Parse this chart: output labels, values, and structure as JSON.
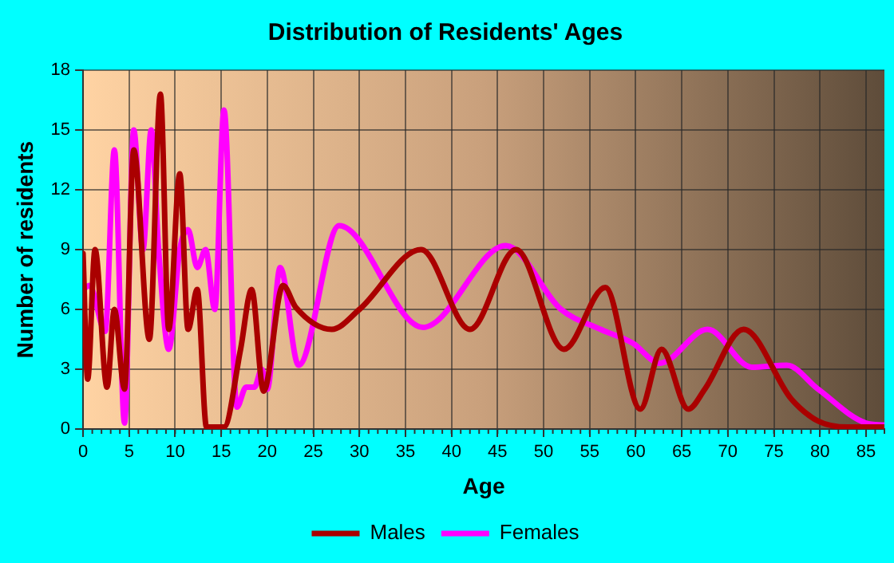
{
  "chart_data": {
    "type": "line",
    "title": "Distribution of Residents' Ages",
    "xlabel": "Age",
    "ylabel": "Number of residents",
    "xlim": [
      0,
      87
    ],
    "xticks": [
      0,
      5,
      10,
      15,
      20,
      25,
      30,
      35,
      40,
      45,
      50,
      55,
      60,
      65,
      70,
      75,
      80,
      85
    ],
    "ylim": [
      0,
      18
    ],
    "yticks": [
      0,
      3,
      6,
      9,
      12,
      15,
      18
    ],
    "grid": true,
    "legend": "bottom",
    "marker": "none",
    "line_style": "solid",
    "series": [
      {
        "name": "Males",
        "color": "#aa0000",
        "x": [
          0,
          0.5,
          1.3,
          2.6,
          3.4,
          4.5,
          5.5,
          7.2,
          8.4,
          9.3,
          10.5,
          11.4,
          12.4,
          13.4,
          15.3,
          17.1,
          18.3,
          19.6,
          21.7,
          23.1,
          27,
          30,
          36.7,
          42,
          47,
          52.2,
          56.7,
          60.5,
          62.8,
          65.7,
          67.5,
          71.7,
          76.9,
          79.8,
          83,
          87
        ],
        "values": [
          8.8,
          2.5,
          9,
          2.1,
          6,
          2,
          14,
          4.5,
          16.8,
          5,
          12.8,
          5,
          7,
          0.1,
          0.1,
          4,
          7,
          1.9,
          7.2,
          6.1,
          5,
          6,
          9,
          5,
          9,
          4,
          7.1,
          1,
          4,
          1,
          2,
          5,
          1.5,
          0.4,
          0.1,
          0.1
        ]
      },
      {
        "name": "Females",
        "color": "#ff00ff",
        "x": [
          0,
          0.7,
          2.4,
          3.4,
          4.5,
          5.5,
          6.5,
          7.4,
          8.2,
          9.3,
          10.5,
          11.4,
          12.4,
          13.3,
          14.3,
          15.3,
          16.7,
          17.7,
          18.6,
          19.4,
          20,
          21.4,
          23.4,
          27.8,
          36.9,
          45.9,
          51.9,
          56.2,
          59.7,
          62.6,
          67.8,
          72.6,
          76.4,
          79.8,
          85,
          87
        ],
        "values": [
          7,
          7.2,
          4.9,
          14,
          0.3,
          15,
          9,
          15,
          9,
          4,
          9,
          10,
          8.1,
          9,
          6,
          16,
          1.1,
          2.1,
          2.1,
          3,
          2,
          8.1,
          3.2,
          10.2,
          5.1,
          9.2,
          6,
          5,
          4.3,
          3.3,
          5,
          3.1,
          3.2,
          2,
          0.3,
          0.2
        ]
      }
    ]
  }
}
